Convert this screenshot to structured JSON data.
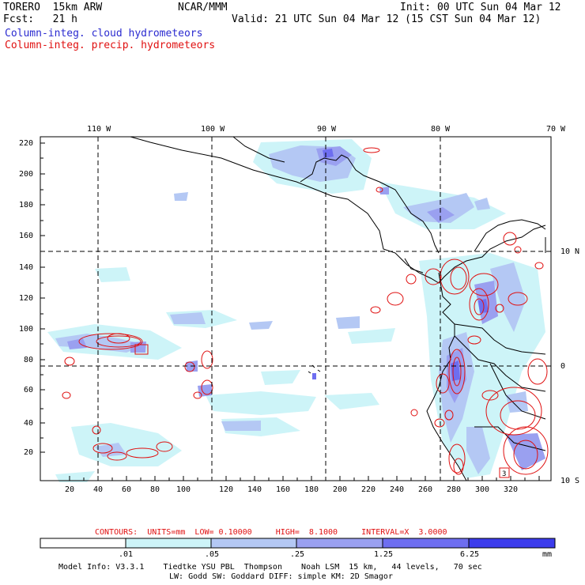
{
  "header": {
    "model": "TORERO  15km ARW",
    "forecast": "Fcst:   21 h",
    "center": "NCAR/MMM",
    "init": "Init: 00 UTC Sun 04 Mar 12",
    "valid": "Valid: 21 UTC Sun 04 Mar 12 (15 CST Sun 04 Mar 12)",
    "legend_cloud": "Column-integ. cloud hydrometeors",
    "legend_precip": "Column-integ. precip. hydrometeors"
  },
  "colors": {
    "cloud_text": "#2b2bd0",
    "precip_text": "#e01010",
    "contour": "#e01010",
    "coast": "#000000"
  },
  "map": {
    "lon_labels": [
      "110 W",
      "100 W",
      "90 W",
      "80 W",
      "70 W"
    ],
    "lat_labels": [
      "10 N",
      "0",
      "10 S"
    ],
    "x_ticks": [
      "20",
      "40",
      "60",
      "80",
      "100",
      "120",
      "140",
      "160",
      "180",
      "200",
      "220",
      "240",
      "260",
      "280",
      "300",
      "320"
    ],
    "y_ticks": [
      "20",
      "40",
      "60",
      "80",
      "100",
      "120",
      "140",
      "160",
      "180",
      "200",
      "220"
    ],
    "hydrometeor_marks": [
      "3"
    ]
  },
  "contour_info": {
    "text": "CONTOURS:  UNITS=mm  LOW= 0.10000     HIGH=  8.1000     INTERVAL=X  3.0000"
  },
  "colorbar": {
    "levels": [
      ".01",
      ".05",
      ".25",
      "1.25",
      "6.25"
    ],
    "unit": "mm",
    "colors": [
      "#ffffff",
      "#cdf4f8",
      "#b4c8f4",
      "#9aa0f0",
      "#6e6ef0",
      "#3c3cec"
    ]
  },
  "footer": {
    "line1": "Model Info: V3.3.1    Tiedtke YSU PBL  Thompson    Noah LSM  15 km,   44 levels,   70 sec",
    "line2": "LW: Godd SW: Goddard DIFF: simple KM: 2D Smagor"
  }
}
